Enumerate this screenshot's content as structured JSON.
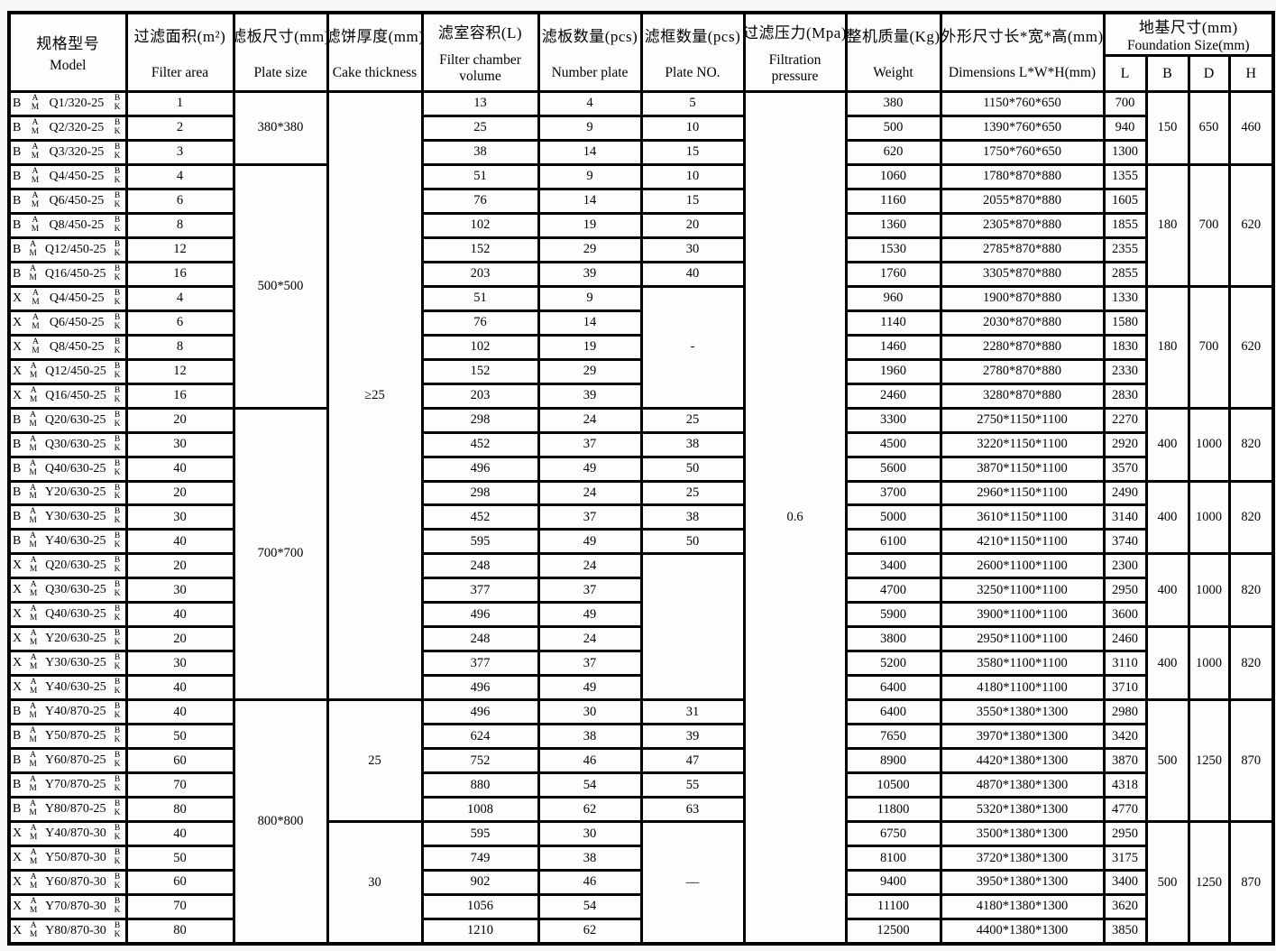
{
  "table": {
    "header": {
      "columns": [
        {
          "cn": "规格型号",
          "en": "Model"
        },
        {
          "cn": "过滤面积(m²)",
          "en": "Filter area"
        },
        {
          "cn": "滤板尺寸(mm)",
          "en": "Plate size"
        },
        {
          "cn": "滤饼厚度(mm)",
          "en": "Cake thickness"
        },
        {
          "cn": "滤室容积(L)",
          "en": "Filter chamber volume"
        },
        {
          "cn": "滤板数量(pcs)",
          "en": "Number plate"
        },
        {
          "cn": "滤框数量(pcs)",
          "en": "Plate NO."
        },
        {
          "cn": "过滤压力(Mpa)",
          "en": "Filtration pressure"
        },
        {
          "cn": "整机质量(Kg)",
          "en": "Weight"
        },
        {
          "cn": "外形尺寸长*宽*高(mm)",
          "en": "Dimensions L*W*H(mm)"
        }
      ],
      "foundation": {
        "cn": "地基尺寸(mm)",
        "en": "Foundation Size(mm)",
        "sub": [
          "L",
          "B",
          "D",
          "H"
        ]
      }
    },
    "model_affixes": {
      "stack1": [
        "A",
        "M"
      ],
      "stack2": [
        "B",
        "K"
      ]
    },
    "rows": [
      {
        "prefix": "B",
        "code": "Q1/320-25",
        "area": "1",
        "volume": "13",
        "plates": "4",
        "frames": "5",
        "weight": "380",
        "dims": "1150*760*650",
        "L": "700"
      },
      {
        "prefix": "B",
        "code": "Q2/320-25",
        "area": "2",
        "volume": "25",
        "plates": "9",
        "frames": "10",
        "weight": "500",
        "dims": "1390*760*650",
        "L": "940"
      },
      {
        "prefix": "B",
        "code": "Q3/320-25",
        "area": "3",
        "volume": "38",
        "plates": "14",
        "frames": "15",
        "weight": "620",
        "dims": "1750*760*650",
        "L": "1300"
      },
      {
        "prefix": "B",
        "code": "Q4/450-25",
        "area": "4",
        "volume": "51",
        "plates": "9",
        "frames": "10",
        "weight": "1060",
        "dims": "1780*870*880",
        "L": "1355"
      },
      {
        "prefix": "B",
        "code": "Q6/450-25",
        "area": "6",
        "volume": "76",
        "plates": "14",
        "frames": "15",
        "weight": "1160",
        "dims": "2055*870*880",
        "L": "1605"
      },
      {
        "prefix": "B",
        "code": "Q8/450-25",
        "area": "8",
        "volume": "102",
        "plates": "19",
        "frames": "20",
        "weight": "1360",
        "dims": "2305*870*880",
        "L": "1855"
      },
      {
        "prefix": "B",
        "code": "Q12/450-25",
        "area": "12",
        "volume": "152",
        "plates": "29",
        "frames": "30",
        "weight": "1530",
        "dims": "2785*870*880",
        "L": "2355"
      },
      {
        "prefix": "B",
        "code": "Q16/450-25",
        "area": "16",
        "volume": "203",
        "plates": "39",
        "frames": "40",
        "weight": "1760",
        "dims": "3305*870*880",
        "L": "2855"
      },
      {
        "prefix": "X",
        "code": "Q4/450-25",
        "area": "4",
        "volume": "51",
        "plates": "9",
        "frames": null,
        "weight": "960",
        "dims": "1900*870*880",
        "L": "1330"
      },
      {
        "prefix": "X",
        "code": "Q6/450-25",
        "area": "6",
        "volume": "76",
        "plates": "14",
        "frames": null,
        "weight": "1140",
        "dims": "2030*870*880",
        "L": "1580"
      },
      {
        "prefix": "X",
        "code": "Q8/450-25",
        "area": "8",
        "volume": "102",
        "plates": "19",
        "frames": null,
        "weight": "1460",
        "dims": "2280*870*880",
        "L": "1830"
      },
      {
        "prefix": "X",
        "code": "Q12/450-25",
        "area": "12",
        "volume": "152",
        "plates": "29",
        "frames": null,
        "weight": "1960",
        "dims": "2780*870*880",
        "L": "2330"
      },
      {
        "prefix": "X",
        "code": "Q16/450-25",
        "area": "16",
        "volume": "203",
        "plates": "39",
        "frames": null,
        "weight": "2460",
        "dims": "3280*870*880",
        "L": "2830"
      },
      {
        "prefix": "B",
        "code": "Q20/630-25",
        "area": "20",
        "volume": "298",
        "plates": "24",
        "frames": "25",
        "weight": "3300",
        "dims": "2750*1150*1100",
        "L": "2270"
      },
      {
        "prefix": "B",
        "code": "Q30/630-25",
        "area": "30",
        "volume": "452",
        "plates": "37",
        "frames": "38",
        "weight": "4500",
        "dims": "3220*1150*1100",
        "L": "2920"
      },
      {
        "prefix": "B",
        "code": "Q40/630-25",
        "area": "40",
        "volume": "496",
        "plates": "49",
        "frames": "50",
        "weight": "5600",
        "dims": "3870*1150*1100",
        "L": "3570"
      },
      {
        "prefix": "B",
        "code": "Y20/630-25",
        "area": "20",
        "volume": "298",
        "plates": "24",
        "frames": "25",
        "weight": "3700",
        "dims": "2960*1150*1100",
        "L": "2490"
      },
      {
        "prefix": "B",
        "code": "Y30/630-25",
        "area": "30",
        "volume": "452",
        "plates": "37",
        "frames": "38",
        "weight": "5000",
        "dims": "3610*1150*1100",
        "L": "3140"
      },
      {
        "prefix": "B",
        "code": "Y40/630-25",
        "area": "40",
        "volume": "595",
        "plates": "49",
        "frames": "50",
        "weight": "6100",
        "dims": "4210*1150*1100",
        "L": "3740"
      },
      {
        "prefix": "X",
        "code": "Q20/630-25",
        "area": "20",
        "volume": "248",
        "plates": "24",
        "frames": null,
        "weight": "3400",
        "dims": "2600*1100*1100",
        "L": "2300"
      },
      {
        "prefix": "X",
        "code": "Q30/630-25",
        "area": "30",
        "volume": "377",
        "plates": "37",
        "frames": null,
        "weight": "4700",
        "dims": "3250*1100*1100",
        "L": "2950"
      },
      {
        "prefix": "X",
        "code": "Q40/630-25",
        "area": "40",
        "volume": "496",
        "plates": "49",
        "frames": null,
        "weight": "5900",
        "dims": "3900*1100*1100",
        "L": "3600"
      },
      {
        "prefix": "X",
        "code": "Y20/630-25",
        "area": "20",
        "volume": "248",
        "plates": "24",
        "frames": null,
        "weight": "3800",
        "dims": "2950*1100*1100",
        "L": "2460"
      },
      {
        "prefix": "X",
        "code": "Y30/630-25",
        "area": "30",
        "volume": "377",
        "plates": "37",
        "frames": null,
        "weight": "5200",
        "dims": "3580*1100*1100",
        "L": "3110"
      },
      {
        "prefix": "X",
        "code": "Y40/630-25",
        "area": "40",
        "volume": "496",
        "plates": "49",
        "frames": null,
        "weight": "6400",
        "dims": "4180*1100*1100",
        "L": "3710"
      },
      {
        "prefix": "B",
        "code": "Y40/870-25",
        "area": "40",
        "volume": "496",
        "plates": "30",
        "frames": "31",
        "weight": "6400",
        "dims": "3550*1380*1300",
        "L": "2980"
      },
      {
        "prefix": "B",
        "code": "Y50/870-25",
        "area": "50",
        "volume": "624",
        "plates": "38",
        "frames": "39",
        "weight": "7650",
        "dims": "3970*1380*1300",
        "L": "3420"
      },
      {
        "prefix": "B",
        "code": "Y60/870-25",
        "area": "60",
        "volume": "752",
        "plates": "46",
        "frames": "47",
        "weight": "8900",
        "dims": "4420*1380*1300",
        "L": "3870"
      },
      {
        "prefix": "B",
        "code": "Y70/870-25",
        "area": "70",
        "volume": "880",
        "plates": "54",
        "frames": "55",
        "weight": "10500",
        "dims": "4870*1380*1300",
        "L": "4318"
      },
      {
        "prefix": "B",
        "code": "Y80/870-25",
        "area": "80",
        "volume": "1008",
        "plates": "62",
        "frames": "63",
        "weight": "11800",
        "dims": "5320*1380*1300",
        "L": "4770"
      },
      {
        "prefix": "X",
        "code": "Y40/870-30",
        "area": "40",
        "volume": "595",
        "plates": "30",
        "frames": null,
        "weight": "6750",
        "dims": "3500*1380*1300",
        "L": "2950"
      },
      {
        "prefix": "X",
        "code": "Y50/870-30",
        "area": "50",
        "volume": "749",
        "plates": "38",
        "frames": null,
        "weight": "8100",
        "dims": "3720*1380*1300",
        "L": "3175"
      },
      {
        "prefix": "X",
        "code": "Y60/870-30",
        "area": "60",
        "volume": "902",
        "plates": "46",
        "frames": null,
        "weight": "9400",
        "dims": "3950*1380*1300",
        "L": "3400"
      },
      {
        "prefix": "X",
        "code": "Y70/870-30",
        "area": "70",
        "volume": "1056",
        "plates": "54",
        "frames": null,
        "weight": "11100",
        "dims": "4180*1380*1300",
        "L": "3620"
      },
      {
        "prefix": "X",
        "code": "Y80/870-30",
        "area": "80",
        "volume": "1210",
        "plates": "62",
        "frames": null,
        "weight": "12500",
        "dims": "4400*1380*1300",
        "L": "3850"
      }
    ],
    "merges": {
      "plate_size": [
        {
          "row": 0,
          "span": 3,
          "v": "380*380"
        },
        {
          "row": 3,
          "span": 10,
          "v": "500*500"
        },
        {
          "row": 13,
          "span": 12,
          "v": "700*700"
        },
        {
          "row": 25,
          "span": 10,
          "v": "800*800"
        }
      ],
      "cake": [
        {
          "row": 0,
          "span": 25,
          "v": "≥25"
        },
        {
          "row": 25,
          "span": 5,
          "v": "25"
        },
        {
          "row": 30,
          "span": 5,
          "v": "30"
        }
      ],
      "frames": [
        {
          "row": 8,
          "span": 5,
          "v": "-"
        },
        {
          "row": 19,
          "span": 6,
          "v": ""
        },
        {
          "row": 30,
          "span": 5,
          "v": "—"
        }
      ],
      "pressure": [
        {
          "row": 0,
          "span": 35,
          "v": "0.6"
        }
      ],
      "foundation": [
        {
          "row": 0,
          "span": 3,
          "b": "150",
          "d": "650",
          "h": "460"
        },
        {
          "row": 3,
          "span": 5,
          "b": "180",
          "d": "700",
          "h": "620"
        },
        {
          "row": 8,
          "span": 5,
          "b": "180",
          "d": "700",
          "h": "620"
        },
        {
          "row": 13,
          "span": 3,
          "b": "400",
          "d": "1000",
          "h": "820"
        },
        {
          "row": 16,
          "span": 3,
          "b": "400",
          "d": "1000",
          "h": "820"
        },
        {
          "row": 19,
          "span": 3,
          "b": "400",
          "d": "1000",
          "h": "820"
        },
        {
          "row": 22,
          "span": 3,
          "b": "400",
          "d": "1000",
          "h": "820"
        },
        {
          "row": 25,
          "span": 5,
          "b": "500",
          "d": "1250",
          "h": "870"
        },
        {
          "row": 30,
          "span": 5,
          "b": "500",
          "d": "1250",
          "h": "870"
        }
      ]
    }
  }
}
